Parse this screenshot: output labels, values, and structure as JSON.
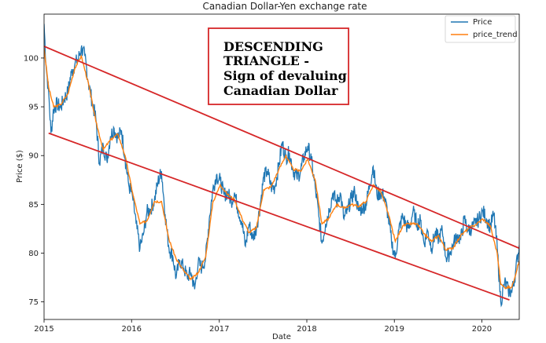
{
  "chart_data": {
    "type": "line",
    "title": "Canadian Dollar-Yen exchange rate",
    "xlabel": "Date",
    "ylabel": "Price ($)",
    "xlim": [
      "2015-01-01",
      "2020-06-05"
    ],
    "ylim": [
      73.2,
      104.5
    ],
    "x_ticks": [
      "2015",
      "2016",
      "2017",
      "2018",
      "2019",
      "2020"
    ],
    "y_ticks": [
      75,
      80,
      85,
      90,
      95,
      100
    ],
    "grid": false,
    "legend": "top-right",
    "colors": {
      "price": "#1f77b4",
      "price_trend": "#ff7f0e",
      "trendline": "#d62728",
      "annotation_border": "#d62728"
    },
    "series": [
      {
        "name": "Price",
        "points": [
          [
            "2015-01-01",
            103.5
          ],
          [
            "2015-01-10",
            99.0
          ],
          [
            "2015-01-20",
            96.5
          ],
          [
            "2015-01-30",
            92.3
          ],
          [
            "2015-02-10",
            94.8
          ],
          [
            "2015-02-25",
            95.3
          ],
          [
            "2015-03-10",
            94.9
          ],
          [
            "2015-03-25",
            95.8
          ],
          [
            "2015-04-10",
            96.5
          ],
          [
            "2015-04-25",
            98.5
          ],
          [
            "2015-05-10",
            99.4
          ],
          [
            "2015-05-25",
            100.0
          ],
          [
            "2015-06-05",
            101.0
          ],
          [
            "2015-06-20",
            100.2
          ],
          [
            "2015-07-05",
            97.5
          ],
          [
            "2015-07-20",
            95.6
          ],
          [
            "2015-08-05",
            93.8
          ],
          [
            "2015-08-20",
            89.3
          ],
          [
            "2015-09-05",
            91.0
          ],
          [
            "2015-09-20",
            89.5
          ],
          [
            "2015-10-05",
            92.0
          ],
          [
            "2015-10-20",
            92.8
          ],
          [
            "2015-11-05",
            91.8
          ],
          [
            "2015-11-20",
            92.6
          ],
          [
            "2015-12-05",
            89.7
          ],
          [
            "2015-12-20",
            87.0
          ],
          [
            "2016-01-05",
            85.8
          ],
          [
            "2016-01-20",
            83.0
          ],
          [
            "2016-02-05",
            80.5
          ],
          [
            "2016-02-20",
            82.0
          ],
          [
            "2016-03-05",
            84.2
          ],
          [
            "2016-03-20",
            84.5
          ],
          [
            "2016-04-05",
            85.4
          ],
          [
            "2016-04-20",
            87.3
          ],
          [
            "2016-05-05",
            88.4
          ],
          [
            "2016-05-20",
            84.0
          ],
          [
            "2016-06-05",
            80.5
          ],
          [
            "2016-06-20",
            79.8
          ],
          [
            "2016-07-05",
            77.5
          ],
          [
            "2016-07-20",
            79.3
          ],
          [
            "2016-08-05",
            78.5
          ],
          [
            "2016-08-20",
            77.6
          ],
          [
            "2016-09-05",
            78.0
          ],
          [
            "2016-09-20",
            76.3
          ],
          [
            "2016-10-05",
            79.0
          ],
          [
            "2016-10-20",
            78.5
          ],
          [
            "2016-11-05",
            79.5
          ],
          [
            "2016-11-20",
            83.5
          ],
          [
            "2016-12-05",
            86.5
          ],
          [
            "2016-12-20",
            88.0
          ],
          [
            "2017-01-05",
            87.4
          ],
          [
            "2017-01-20",
            86.0
          ],
          [
            "2017-02-05",
            86.2
          ],
          [
            "2017-02-20",
            85.3
          ],
          [
            "2017-03-05",
            86.2
          ],
          [
            "2017-03-20",
            84.5
          ],
          [
            "2017-04-05",
            83.2
          ],
          [
            "2017-04-20",
            80.7
          ],
          [
            "2017-05-05",
            83.0
          ],
          [
            "2017-05-20",
            81.5
          ],
          [
            "2017-06-05",
            82.6
          ],
          [
            "2017-06-20",
            84.8
          ],
          [
            "2017-07-05",
            87.8
          ],
          [
            "2017-07-20",
            88.4
          ],
          [
            "2017-08-05",
            86.8
          ],
          [
            "2017-08-20",
            86.7
          ],
          [
            "2017-09-05",
            88.8
          ],
          [
            "2017-09-20",
            91.3
          ],
          [
            "2017-10-05",
            89.8
          ],
          [
            "2017-10-20",
            90.3
          ],
          [
            "2017-11-05",
            88.5
          ],
          [
            "2017-11-20",
            87.8
          ],
          [
            "2017-12-05",
            88.3
          ],
          [
            "2017-12-20",
            89.9
          ],
          [
            "2018-01-05",
            91.0
          ],
          [
            "2018-01-20",
            89.5
          ],
          [
            "2018-02-05",
            86.7
          ],
          [
            "2018-02-20",
            83.8
          ],
          [
            "2018-03-05",
            81.0
          ],
          [
            "2018-03-20",
            83.0
          ],
          [
            "2018-04-05",
            84.5
          ],
          [
            "2018-04-20",
            86.2
          ],
          [
            "2018-05-05",
            85.1
          ],
          [
            "2018-05-20",
            86.2
          ],
          [
            "2018-06-05",
            83.5
          ],
          [
            "2018-06-20",
            84.4
          ],
          [
            "2018-07-05",
            85.6
          ],
          [
            "2018-07-20",
            86.3
          ],
          [
            "2018-08-05",
            84.3
          ],
          [
            "2018-08-20",
            84.6
          ],
          [
            "2018-09-05",
            85.0
          ],
          [
            "2018-09-20",
            87.0
          ],
          [
            "2018-10-05",
            88.9
          ],
          [
            "2018-10-20",
            86.0
          ],
          [
            "2018-11-05",
            86.2
          ],
          [
            "2018-11-20",
            85.8
          ],
          [
            "2018-12-05",
            84.0
          ],
          [
            "2018-12-20",
            81.2
          ],
          [
            "2019-01-05",
            79.5
          ],
          [
            "2019-01-20",
            82.4
          ],
          [
            "2019-02-05",
            83.8
          ],
          [
            "2019-02-20",
            82.8
          ],
          [
            "2019-03-05",
            82.6
          ],
          [
            "2019-03-20",
            84.3
          ],
          [
            "2019-04-05",
            83.0
          ],
          [
            "2019-04-20",
            83.3
          ],
          [
            "2019-05-05",
            81.0
          ],
          [
            "2019-05-20",
            82.3
          ],
          [
            "2019-06-05",
            80.5
          ],
          [
            "2019-06-20",
            82.0
          ],
          [
            "2019-07-05",
            81.5
          ],
          [
            "2019-07-20",
            82.3
          ],
          [
            "2019-08-05",
            79.5
          ],
          [
            "2019-08-20",
            80.0
          ],
          [
            "2019-09-05",
            81.0
          ],
          [
            "2019-09-20",
            81.8
          ],
          [
            "2019-10-05",
            81.4
          ],
          [
            "2019-10-20",
            83.5
          ],
          [
            "2019-11-05",
            82.3
          ],
          [
            "2019-11-20",
            82.6
          ],
          [
            "2019-12-05",
            83.0
          ],
          [
            "2019-12-20",
            83.5
          ],
          [
            "2020-01-05",
            84.3
          ],
          [
            "2020-01-20",
            83.5
          ],
          [
            "2020-02-05",
            82.7
          ],
          [
            "2020-02-20",
            84.0
          ],
          [
            "2020-03-05",
            80.6
          ],
          [
            "2020-03-20",
            75.0
          ],
          [
            "2020-04-05",
            77.0
          ],
          [
            "2020-04-20",
            76.2
          ],
          [
            "2020-05-05",
            76.0
          ],
          [
            "2020-05-20",
            78.0
          ],
          [
            "2020-06-05",
            80.8
          ]
        ]
      },
      {
        "name": "price_trend",
        "points": [
          [
            "2015-01-01",
            101.0
          ],
          [
            "2015-01-20",
            97.0
          ],
          [
            "2015-02-10",
            95.0
          ],
          [
            "2015-03-10",
            95.2
          ],
          [
            "2015-04-10",
            96.3
          ],
          [
            "2015-05-10",
            99.0
          ],
          [
            "2015-06-05",
            100.2
          ],
          [
            "2015-07-05",
            97.4
          ],
          [
            "2015-08-05",
            93.5
          ],
          [
            "2015-09-05",
            90.6
          ],
          [
            "2015-10-05",
            91.6
          ],
          [
            "2015-11-05",
            92.2
          ],
          [
            "2015-12-05",
            90.0
          ],
          [
            "2016-01-05",
            86.2
          ],
          [
            "2016-02-05",
            83.0
          ],
          [
            "2016-03-05",
            83.3
          ],
          [
            "2016-04-05",
            85.3
          ],
          [
            "2016-05-05",
            85.3
          ],
          [
            "2016-06-05",
            81.4
          ],
          [
            "2016-07-05",
            79.4
          ],
          [
            "2016-08-05",
            78.2
          ],
          [
            "2016-09-05",
            77.3
          ],
          [
            "2016-10-05",
            78.0
          ],
          [
            "2016-11-05",
            79.6
          ],
          [
            "2016-12-05",
            85.2
          ],
          [
            "2017-01-05",
            87.0
          ],
          [
            "2017-02-05",
            86.0
          ],
          [
            "2017-03-05",
            85.5
          ],
          [
            "2017-04-05",
            83.6
          ],
          [
            "2017-05-05",
            82.1
          ],
          [
            "2017-06-05",
            82.6
          ],
          [
            "2017-07-05",
            86.5
          ],
          [
            "2017-08-05",
            86.8
          ],
          [
            "2017-09-05",
            88.5
          ],
          [
            "2017-10-05",
            90.0
          ],
          [
            "2017-11-05",
            88.6
          ],
          [
            "2017-12-05",
            88.4
          ],
          [
            "2018-01-05",
            89.6
          ],
          [
            "2018-02-05",
            87.5
          ],
          [
            "2018-03-05",
            83.0
          ],
          [
            "2018-04-05",
            83.6
          ],
          [
            "2018-05-05",
            85.0
          ],
          [
            "2018-06-05",
            84.6
          ],
          [
            "2018-07-05",
            85.0
          ],
          [
            "2018-08-05",
            84.8
          ],
          [
            "2018-09-05",
            85.3
          ],
          [
            "2018-10-05",
            87.0
          ],
          [
            "2018-11-05",
            86.3
          ],
          [
            "2018-12-05",
            84.2
          ],
          [
            "2019-01-05",
            81.2
          ],
          [
            "2019-02-05",
            82.8
          ],
          [
            "2019-03-05",
            83.0
          ],
          [
            "2019-04-05",
            83.0
          ],
          [
            "2019-05-05",
            82.0
          ],
          [
            "2019-06-05",
            81.2
          ],
          [
            "2019-07-05",
            81.8
          ],
          [
            "2019-08-05",
            80.3
          ],
          [
            "2019-09-05",
            80.6
          ],
          [
            "2019-10-05",
            81.8
          ],
          [
            "2019-11-05",
            82.5
          ],
          [
            "2019-12-05",
            82.9
          ],
          [
            "2020-01-05",
            83.5
          ],
          [
            "2020-02-05",
            82.8
          ],
          [
            "2020-03-05",
            80.0
          ],
          [
            "2020-03-20",
            76.8
          ],
          [
            "2020-04-05",
            76.5
          ],
          [
            "2020-05-05",
            76.5
          ],
          [
            "2020-06-05",
            79.2
          ]
        ]
      }
    ],
    "trendlines": [
      {
        "from": [
          "2015-01-01",
          101.2
        ],
        "to": [
          "2020-06-05",
          80.5
        ]
      },
      {
        "from": [
          "2015-01-20",
          92.3
        ],
        "to": [
          "2020-04-25",
          75.2
        ]
      }
    ],
    "annotation": {
      "lines": [
        "DESCENDING",
        "TRIANGLE -",
        "Sign of devaluing",
        "Canadian Dollar"
      ]
    }
  }
}
